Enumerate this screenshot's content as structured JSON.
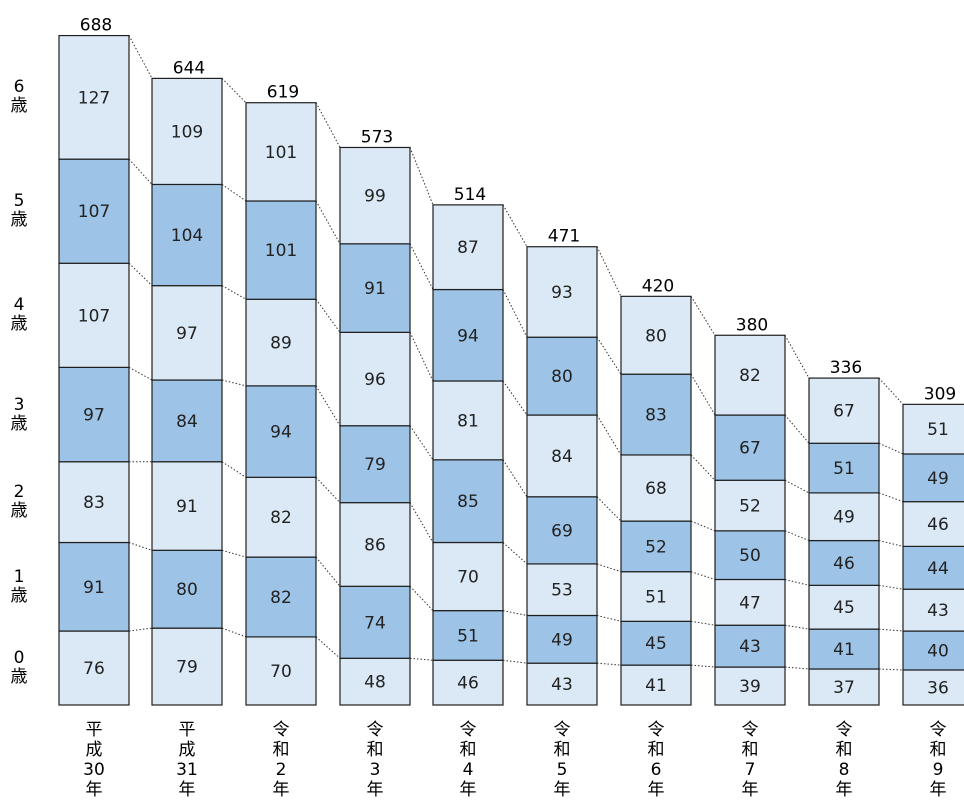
{
  "chart_data": {
    "type": "bar",
    "stacked": true,
    "categories": [
      [
        "平",
        "成",
        "30",
        "年"
      ],
      [
        "平",
        "成",
        "31",
        "年"
      ],
      [
        "令",
        "和",
        "2",
        "年"
      ],
      [
        "令",
        "和",
        "3",
        "年"
      ],
      [
        "令",
        "和",
        "4",
        "年"
      ],
      [
        "令",
        "和",
        "5",
        "年"
      ],
      [
        "令",
        "和",
        "6",
        "年"
      ],
      [
        "令",
        "和",
        "7",
        "年"
      ],
      [
        "令",
        "和",
        "8",
        "年"
      ],
      [
        "令",
        "和",
        "9",
        "年"
      ]
    ],
    "series": [
      {
        "name": "0歳",
        "values": [
          76,
          79,
          70,
          48,
          46,
          43,
          41,
          39,
          37,
          36
        ]
      },
      {
        "name": "1歳",
        "values": [
          91,
          80,
          82,
          74,
          51,
          49,
          45,
          43,
          41,
          40
        ]
      },
      {
        "name": "2歳",
        "values": [
          83,
          91,
          82,
          86,
          70,
          53,
          51,
          47,
          45,
          43
        ]
      },
      {
        "name": "3歳",
        "values": [
          97,
          84,
          94,
          79,
          85,
          69,
          52,
          50,
          46,
          44
        ]
      },
      {
        "name": "4歳",
        "values": [
          107,
          97,
          89,
          96,
          81,
          84,
          68,
          52,
          49,
          46
        ]
      },
      {
        "name": "5歳",
        "values": [
          107,
          104,
          101,
          91,
          94,
          80,
          83,
          67,
          51,
          49
        ]
      },
      {
        "name": "6歳",
        "values": [
          127,
          109,
          101,
          99,
          87,
          93,
          80,
          82,
          67,
          51
        ]
      }
    ],
    "totals": [
      688,
      644,
      619,
      573,
      514,
      471,
      420,
      380,
      336,
      309
    ],
    "age_labels": [
      {
        "num": "6",
        "unit": "歳"
      },
      {
        "num": "5",
        "unit": "歳"
      },
      {
        "num": "4",
        "unit": "歳"
      },
      {
        "num": "3",
        "unit": "歳"
      },
      {
        "num": "2",
        "unit": "歳"
      },
      {
        "num": "1",
        "unit": "歳"
      },
      {
        "num": "0",
        "unit": "歳"
      }
    ],
    "colors": {
      "light": "#dbe9f6",
      "dark": "#9dc3e6",
      "border": "#1f1f1f"
    },
    "grid": false,
    "legend": "none"
  }
}
